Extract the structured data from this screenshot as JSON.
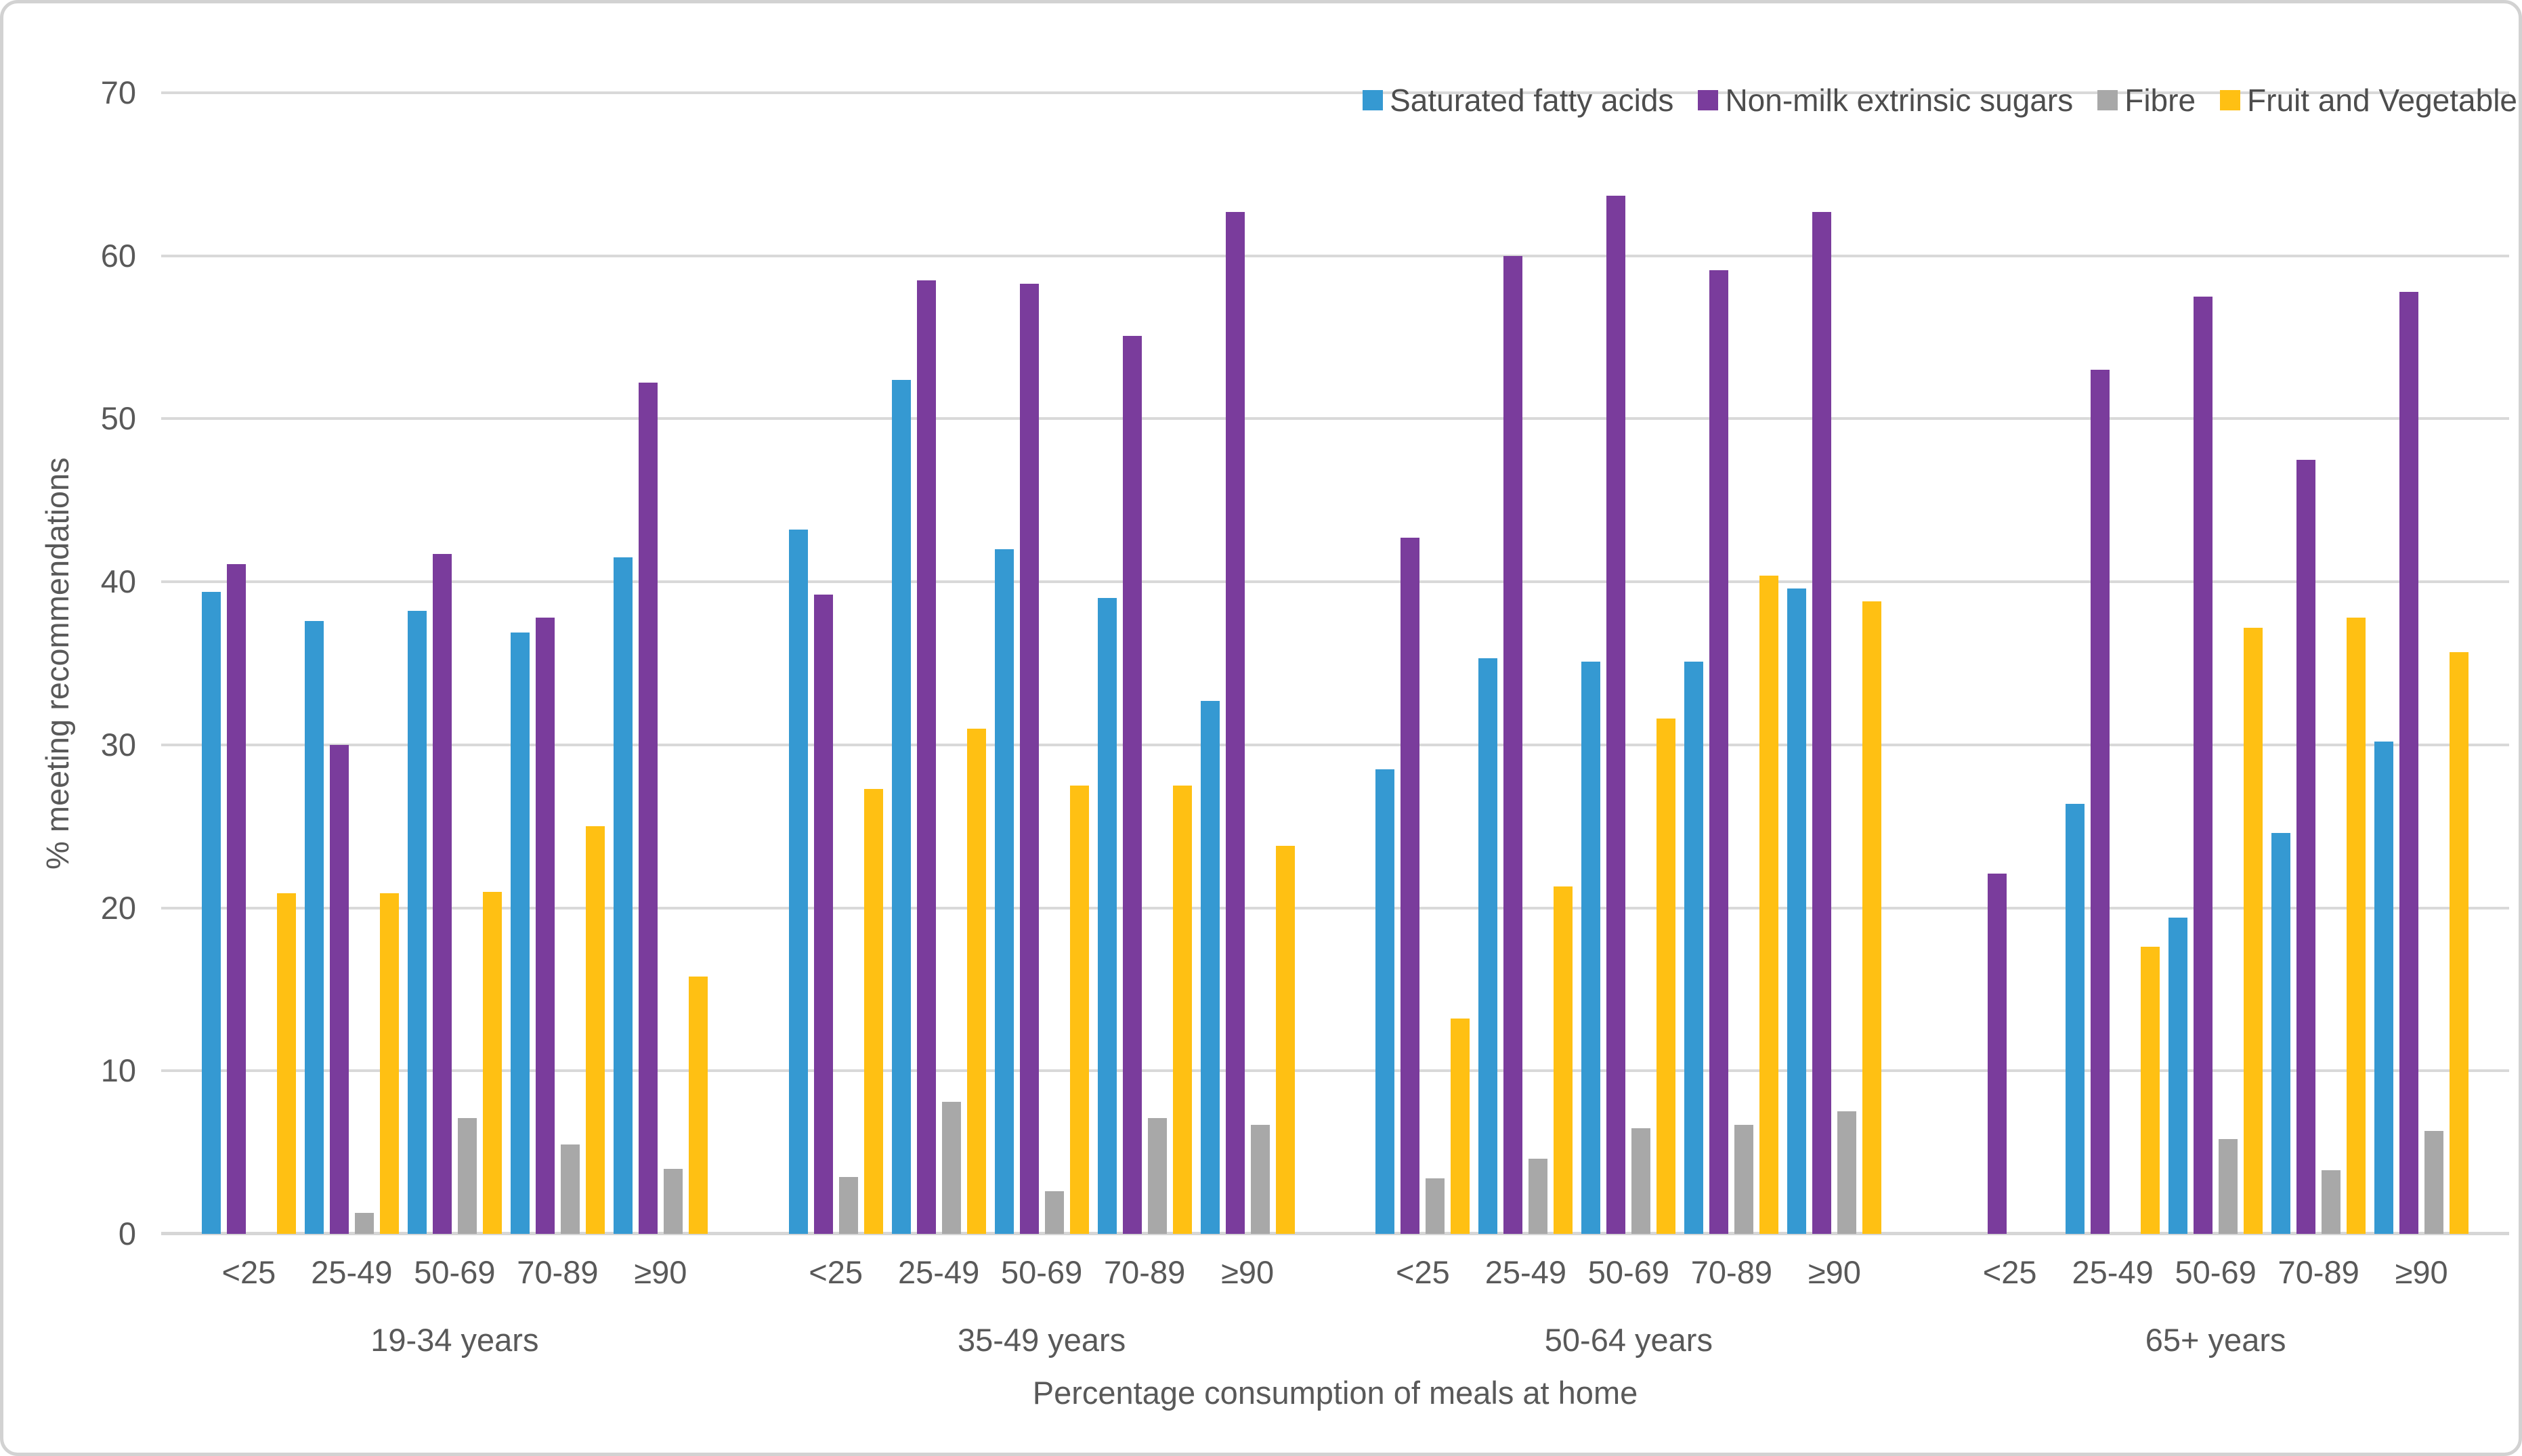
{
  "chart_data": {
    "type": "bar",
    "title": "",
    "ylabel": "% meeting recommendations",
    "xlabel": "Percentage consumption of meals at home",
    "ylim": [
      0,
      70
    ],
    "yticks": [
      0,
      10,
      20,
      30,
      40,
      50,
      60,
      70
    ],
    "grid": true,
    "legend_position": "top-right",
    "categories": [
      "<25",
      "25-49",
      "50-69",
      "70-89",
      "≥90"
    ],
    "group_labels": [
      "19-34 years",
      "35-49 years",
      "50-64 years",
      "65+ years"
    ],
    "series": [
      {
        "name": "Saturated fatty acids",
        "color": "#3599D2",
        "values": [
          [
            39.4,
            37.6,
            38.2,
            36.9,
            41.5
          ],
          [
            43.2,
            52.4,
            42.0,
            39.0,
            32.7
          ],
          [
            28.5,
            35.3,
            35.1,
            35.1,
            39.6
          ],
          [
            0,
            26.4,
            19.4,
            24.6,
            30.2
          ]
        ]
      },
      {
        "name": "Non-milk extrinsic sugars",
        "color": "#7A3C9C",
        "values": [
          [
            41.1,
            30.0,
            41.7,
            37.8,
            52.2
          ],
          [
            39.2,
            58.5,
            58.3,
            55.1,
            62.7
          ],
          [
            42.7,
            60.0,
            63.7,
            59.1,
            62.7
          ],
          [
            22.1,
            53.0,
            57.5,
            47.5,
            57.8
          ]
        ]
      },
      {
        "name": "Fibre",
        "color": "#A8A8A8",
        "values": [
          [
            0,
            1.3,
            7.1,
            5.5,
            4.0
          ],
          [
            3.5,
            8.1,
            2.6,
            7.1,
            6.7
          ],
          [
            3.4,
            4.6,
            6.5,
            6.7,
            7.5
          ],
          [
            0,
            0,
            5.8,
            3.9,
            6.3
          ]
        ]
      },
      {
        "name": "Fruit and Vegetable",
        "color": "#FFC013",
        "values": [
          [
            20.9,
            20.9,
            21.0,
            25.0,
            15.8
          ],
          [
            27.3,
            31.0,
            27.5,
            27.5,
            23.8
          ],
          [
            13.2,
            21.3,
            31.6,
            40.4,
            38.8
          ],
          [
            0,
            17.6,
            37.2,
            37.8,
            35.7
          ]
        ]
      }
    ],
    "colors": {
      "gridline": "#d9d9d9",
      "axis_text": "#595959",
      "legend_text": "#4d4d4d"
    }
  }
}
